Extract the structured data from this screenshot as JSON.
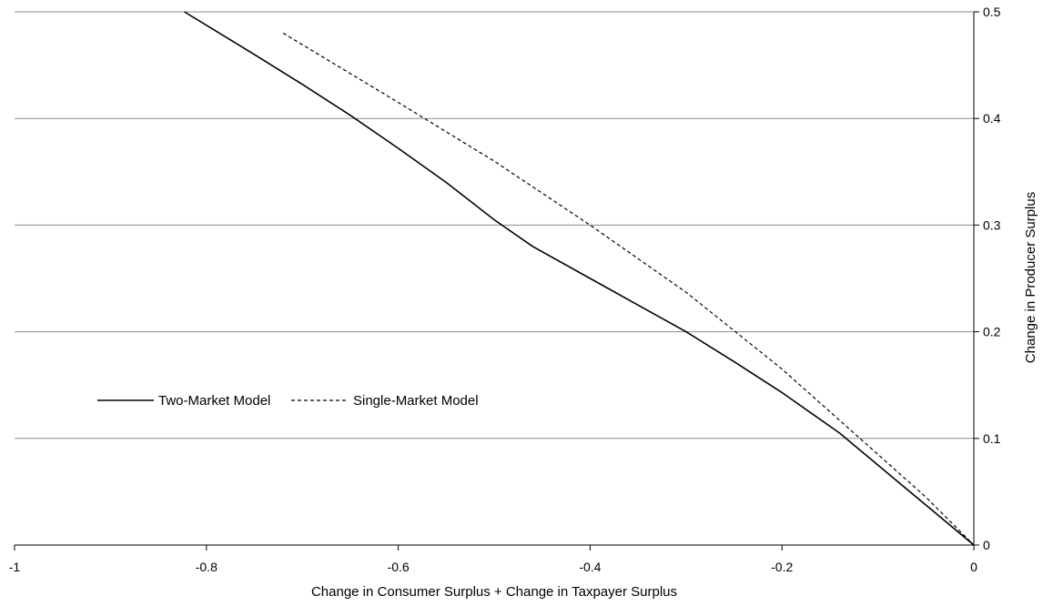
{
  "chart_data": {
    "type": "line",
    "title": "",
    "xlabel": "Change in Consumer Surplus + Change in Taxpayer Surplus",
    "ylabel": "Change in Producer Surplus",
    "xlim": [
      -1,
      0
    ],
    "ylim": [
      0,
      0.5
    ],
    "x_ticks": [
      -1,
      -0.8,
      -0.6,
      -0.4,
      -0.2,
      0
    ],
    "y_ticks": [
      0,
      0.1,
      0.2,
      0.3,
      0.4,
      0.5
    ],
    "x_tick_labels": [
      "-1",
      "-0.8",
      "-0.6",
      "-0.4",
      "-0.2",
      "0"
    ],
    "y_tick_labels": [
      "0",
      "0.1",
      "0.2",
      "0.3",
      "0.4",
      "0.5"
    ],
    "y_axis_position": "right",
    "grid": "horizontal",
    "legend_position": "left",
    "series": [
      {
        "name": "Two-Market Model",
        "style": "solid",
        "color": "#000000",
        "x": [
          -0.823,
          -0.75,
          -0.7,
          -0.65,
          -0.6,
          -0.55,
          -0.5,
          -0.46,
          -0.4,
          -0.35,
          -0.3,
          -0.25,
          -0.2,
          -0.14,
          -0.08,
          -0.04,
          0
        ],
        "y": [
          0.5,
          0.46,
          0.432,
          0.403,
          0.372,
          0.34,
          0.305,
          0.28,
          0.25,
          0.225,
          0.2,
          0.172,
          0.143,
          0.105,
          0.06,
          0.03,
          0
        ]
      },
      {
        "name": "Single-Market Model",
        "style": "dashed",
        "color": "#000000",
        "x": [
          -0.72,
          -0.6,
          -0.5,
          -0.4,
          -0.3,
          -0.2,
          -0.1,
          -0.05,
          0
        ],
        "y": [
          0.48,
          0.415,
          0.36,
          0.3,
          0.237,
          0.165,
          0.085,
          0.045,
          0
        ]
      }
    ]
  }
}
